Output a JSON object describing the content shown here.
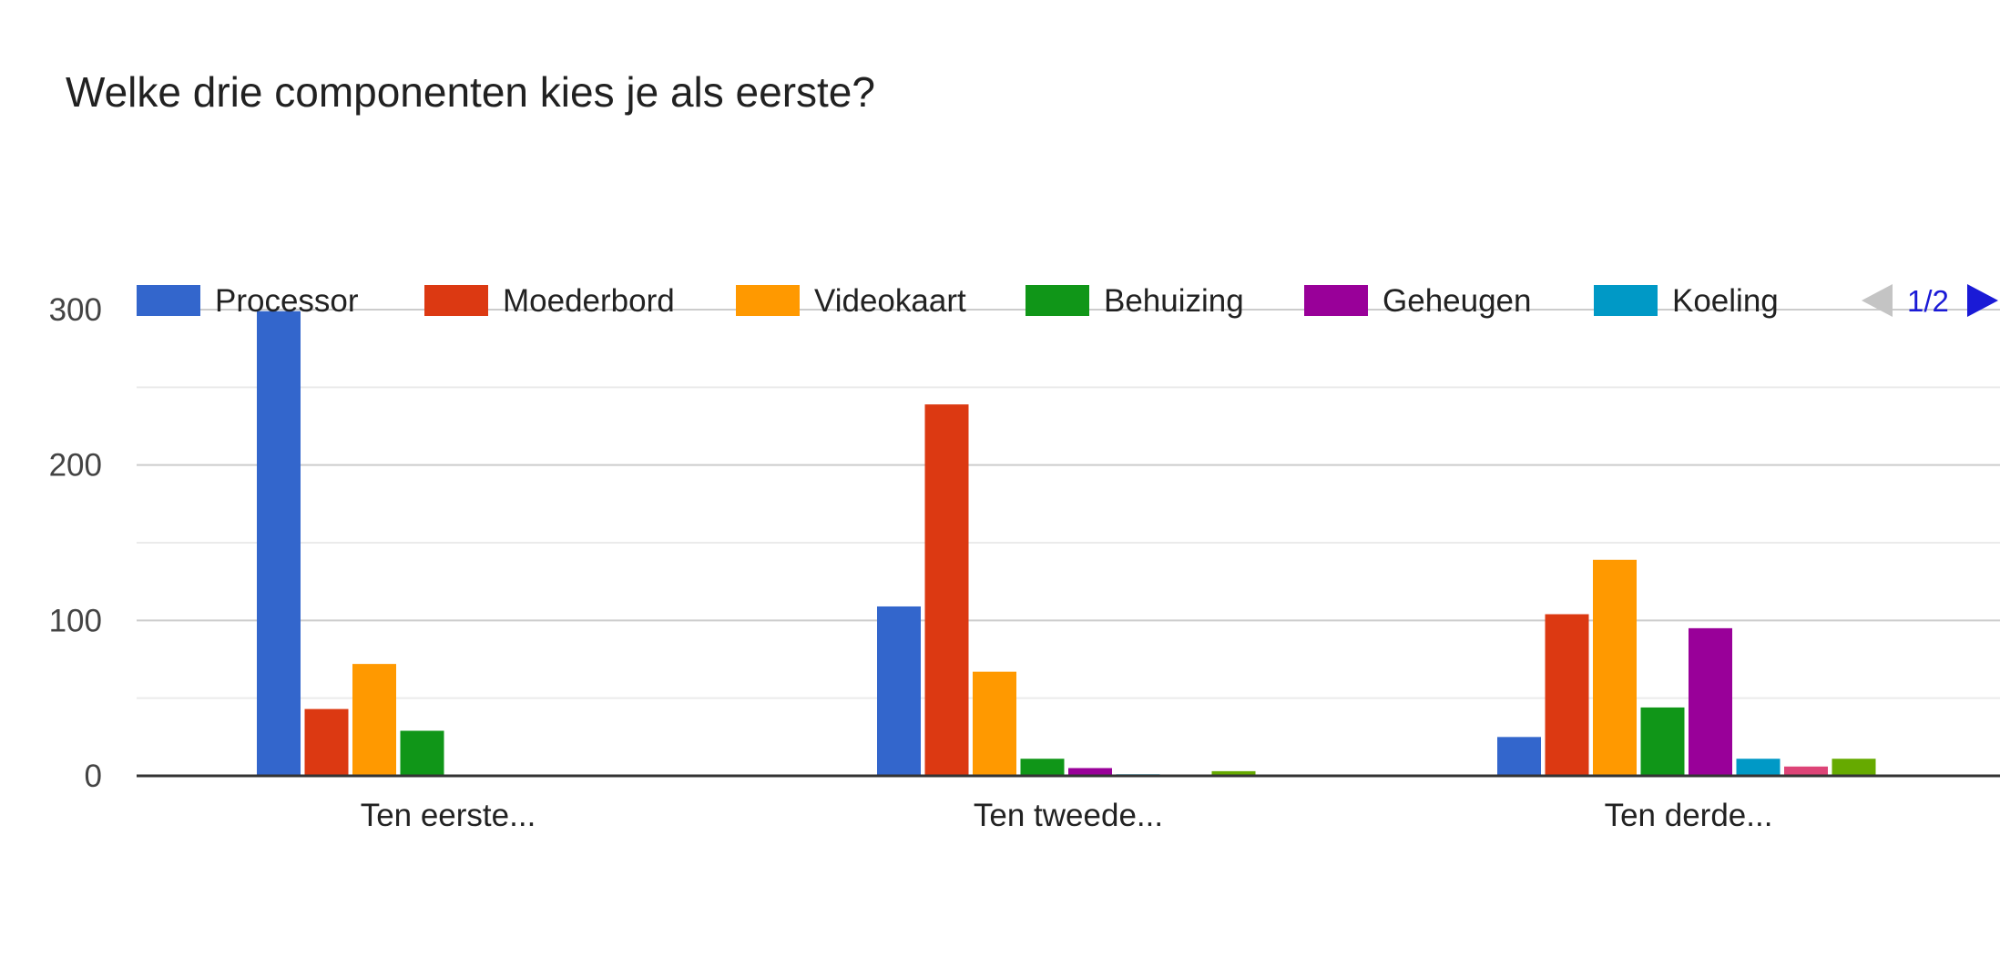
{
  "chart_data": {
    "type": "bar",
    "title": "Welke drie componenten kies je als eerste?",
    "categories": [
      "Ten eerste...",
      "Ten tweede...",
      "Ten derde..."
    ],
    "ylim": [
      0,
      300
    ],
    "yticks": [
      0,
      100,
      200,
      300
    ],
    "grid": true,
    "legend_position": "top",
    "legend_page": "1/2",
    "series": [
      {
        "name": "Processor",
        "color": "#3366cc",
        "values": [
          299,
          109,
          25
        ]
      },
      {
        "name": "Moederbord",
        "color": "#dc3912",
        "values": [
          43,
          239,
          104
        ]
      },
      {
        "name": "Videokaart",
        "color": "#ff9900",
        "values": [
          72,
          67,
          139
        ]
      },
      {
        "name": "Behuizing",
        "color": "#109618",
        "values": [
          29,
          11,
          44
        ]
      },
      {
        "name": "Geheugen",
        "color": "#990099",
        "values": [
          0,
          5,
          95
        ]
      },
      {
        "name": "Koeling",
        "color": "#0099c6",
        "values": [
          0,
          1,
          11
        ]
      },
      {
        "color": "#dd4477",
        "values": [
          0,
          0,
          6
        ]
      },
      {
        "color": "#66aa00",
        "values": [
          0,
          3,
          11
        ]
      }
    ]
  }
}
